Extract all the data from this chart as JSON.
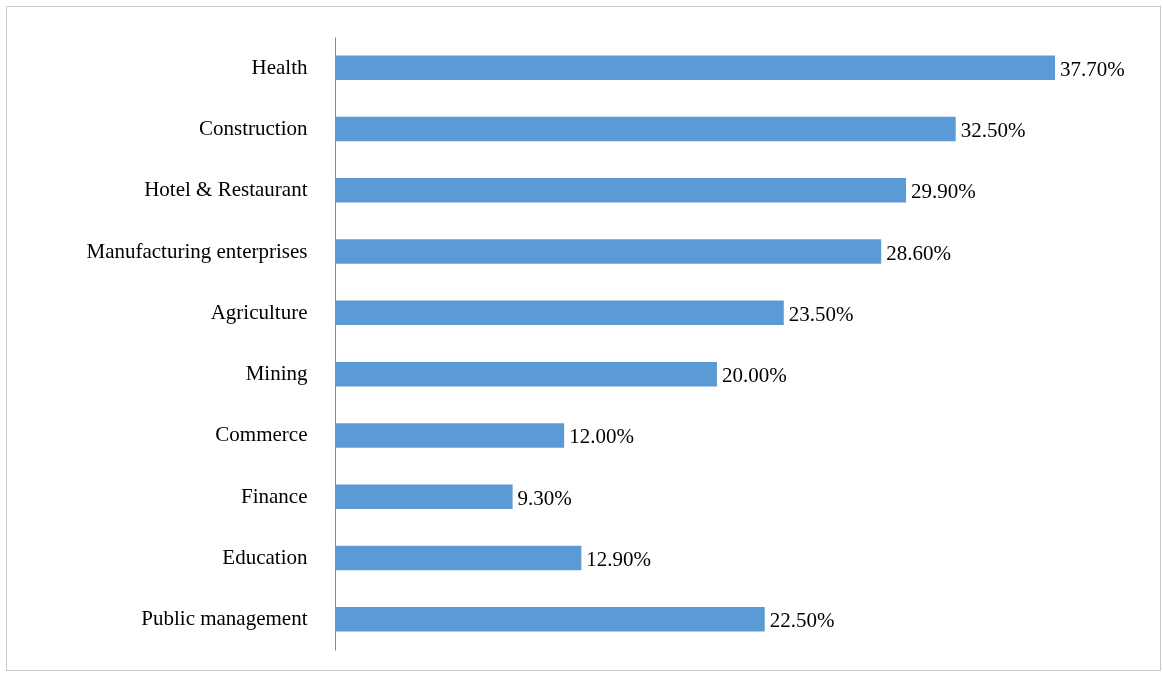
{
  "chart_data": {
    "type": "bar",
    "orientation": "horizontal",
    "categories": [
      "Health",
      "Construction",
      "Hotel & Restaurant",
      "Manufacturing enterprises",
      "Agriculture",
      "Mining",
      "Commerce",
      "Finance",
      "Education",
      "Public management"
    ],
    "values": [
      37.7,
      32.5,
      29.9,
      28.6,
      23.5,
      20.0,
      12.0,
      9.3,
      12.9,
      22.5
    ],
    "value_labels": [
      "37.70%",
      "32.50%",
      "29.90%",
      "28.60%",
      "23.50%",
      "20.00%",
      "12.00%",
      "9.30%",
      "12.90%",
      "22.50%"
    ],
    "color": "#5b9bd5"
  }
}
